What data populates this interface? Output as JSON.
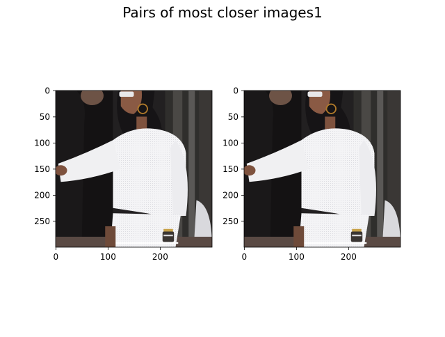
{
  "figure": {
    "suptitle": "Pairs of most closer images1"
  },
  "chart_data": [
    {
      "type": "image",
      "image_width": 300,
      "image_height": 300,
      "xlim": [
        0,
        299
      ],
      "ylim": [
        299,
        0
      ],
      "xticks": [
        0,
        100,
        200
      ],
      "yticks": [
        0,
        50,
        100,
        150,
        200,
        250
      ],
      "content": "photo of a person with long dark hair wearing sunglasses, a sheer white long-sleeve top and white shorts, arm extended to the left, standing in front of a dark doorway"
    },
    {
      "type": "image",
      "image_width": 300,
      "image_height": 300,
      "xlim": [
        0,
        299
      ],
      "ylim": [
        299,
        0
      ],
      "xticks": [
        0,
        100,
        200
      ],
      "yticks": [
        0,
        50,
        100,
        150,
        200,
        250
      ],
      "content": "identical photo of a person with long dark hair wearing sunglasses, a sheer white long-sleeve top and white shorts"
    }
  ],
  "colors": {
    "background": "#ffffff",
    "axis": "#000000",
    "shirt": "#f2f2f4",
    "dark_bg": "#1e1b1c",
    "hair": "#161416",
    "skin": "#8a5a44",
    "door": "#3c3a38"
  }
}
